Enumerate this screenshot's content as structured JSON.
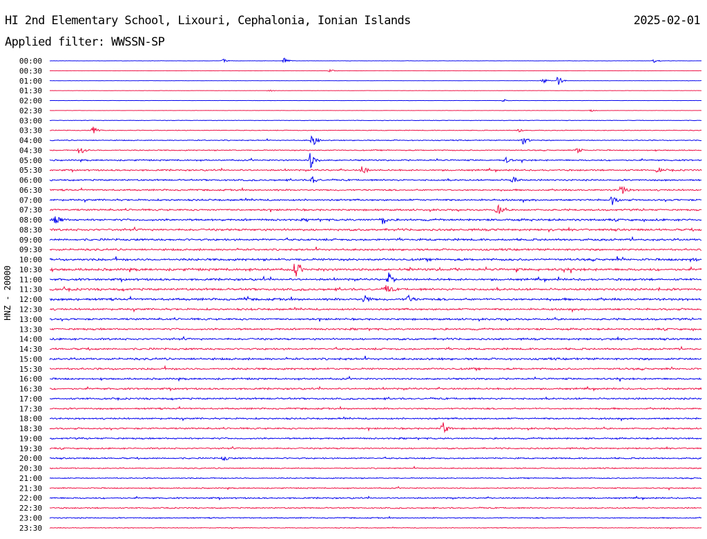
{
  "header": {
    "station": "HI 2nd Elementary School, Lixouri, Cephalonia, Ionian Islands",
    "date": "2025-02-01",
    "filter": "Applied filter: WWSSN-SP",
    "channel": "HNZ - 20000"
  },
  "colors": {
    "even_trace": "#0000ee",
    "odd_trace": "#ee1144",
    "text": "#000000",
    "background": "#ffffff"
  },
  "chart_data": {
    "type": "line",
    "title": "HI 2nd Elementary School, Lixouri, Cephalonia, Ionian Islands",
    "subtitle": "Applied filter: WWSSN-SP",
    "ylabel": "HNZ - 20000",
    "y_tick_labels": [
      "00:00",
      "00:30",
      "01:00",
      "01:30",
      "02:00",
      "02:30",
      "03:00",
      "03:30",
      "04:00",
      "04:30",
      "05:00",
      "05:30",
      "06:00",
      "06:30",
      "07:00",
      "07:30",
      "08:00",
      "08:30",
      "09:00",
      "09:30",
      "10:00",
      "10:30",
      "11:00",
      "11:30",
      "12:00",
      "12:30",
      "13:00",
      "13:30",
      "14:00",
      "14:30",
      "15:00",
      "15:30",
      "16:00",
      "16:30",
      "17:00",
      "17:30",
      "18:00",
      "18:30",
      "19:00",
      "19:30",
      "20:00",
      "20:30",
      "21:00",
      "21:30",
      "22:00",
      "22:30",
      "23:00",
      "23:30"
    ],
    "series_colors": [
      "#0000ee",
      "#ee1144"
    ],
    "x_range_minutes": [
      0,
      30
    ],
    "noise_levels": [
      0.2,
      0.15,
      0.15,
      0.15,
      0.15,
      0.15,
      0.35,
      0.45,
      0.6,
      0.7,
      0.9,
      1.0,
      1.0,
      1.0,
      1.1,
      1.1,
      1.3,
      1.3,
      1.3,
      1.2,
      1.4,
      1.5,
      1.3,
      1.4,
      1.4,
      1.2,
      1.2,
      1.2,
      1.2,
      1.2,
      1.3,
      1.2,
      1.1,
      1.1,
      1.1,
      1.0,
      1.0,
      1.0,
      1.0,
      0.9,
      0.9,
      0.7,
      0.7,
      0.7,
      0.9,
      0.8,
      0.7,
      0.5
    ],
    "events": [
      {
        "row": 0,
        "minute": 8.0,
        "amplitude": 2.5
      },
      {
        "row": 0,
        "minute": 10.8,
        "amplitude": 4
      },
      {
        "row": 0,
        "minute": 27.8,
        "amplitude": 3
      },
      {
        "row": 1,
        "minute": 12.9,
        "amplitude": 2.5
      },
      {
        "row": 2,
        "minute": 22.7,
        "amplitude": 4
      },
      {
        "row": 2,
        "minute": 23.4,
        "amplitude": 7
      },
      {
        "row": 3,
        "minute": 10.1,
        "amplitude": 1.5
      },
      {
        "row": 4,
        "minute": 20.9,
        "amplitude": 2
      },
      {
        "row": 5,
        "minute": 24.9,
        "amplitude": 2
      },
      {
        "row": 7,
        "minute": 2.0,
        "amplitude": 6
      },
      {
        "row": 7,
        "minute": 21.6,
        "amplitude": 3
      },
      {
        "row": 8,
        "minute": 12.1,
        "amplitude": 10
      },
      {
        "row": 8,
        "minute": 21.8,
        "amplitude": 7
      },
      {
        "row": 9,
        "minute": 1.4,
        "amplitude": 8
      },
      {
        "row": 9,
        "minute": 24.3,
        "amplitude": 5
      },
      {
        "row": 10,
        "minute": 12.0,
        "amplitude": 12
      },
      {
        "row": 10,
        "minute": 21.0,
        "amplitude": 4
      },
      {
        "row": 11,
        "minute": 14.4,
        "amplitude": 7
      },
      {
        "row": 11,
        "minute": 28.0,
        "amplitude": 4
      },
      {
        "row": 12,
        "minute": 21.3,
        "amplitude": 7
      },
      {
        "row": 12,
        "minute": 12.1,
        "amplitude": 5
      },
      {
        "row": 13,
        "minute": 26.3,
        "amplitude": 9
      },
      {
        "row": 14,
        "minute": 25.9,
        "amplitude": 7
      },
      {
        "row": 15,
        "minute": 20.6,
        "amplitude": 9
      },
      {
        "row": 16,
        "minute": 0.3,
        "amplitude": 10
      },
      {
        "row": 16,
        "minute": 15.3,
        "amplitude": 8
      },
      {
        "row": 20,
        "minute": 29.5,
        "amplitude": 4
      },
      {
        "row": 21,
        "minute": 11.3,
        "amplitude": 12
      },
      {
        "row": 22,
        "minute": 15.6,
        "amplitude": 10
      },
      {
        "row": 23,
        "minute": 15.5,
        "amplitude": 7
      },
      {
        "row": 24,
        "minute": 14.5,
        "amplitude": 7
      },
      {
        "row": 24,
        "minute": 16.5,
        "amplitude": 6
      },
      {
        "row": 37,
        "minute": 18.1,
        "amplitude": 10
      },
      {
        "row": 40,
        "minute": 8.0,
        "amplitude": 4
      }
    ]
  }
}
